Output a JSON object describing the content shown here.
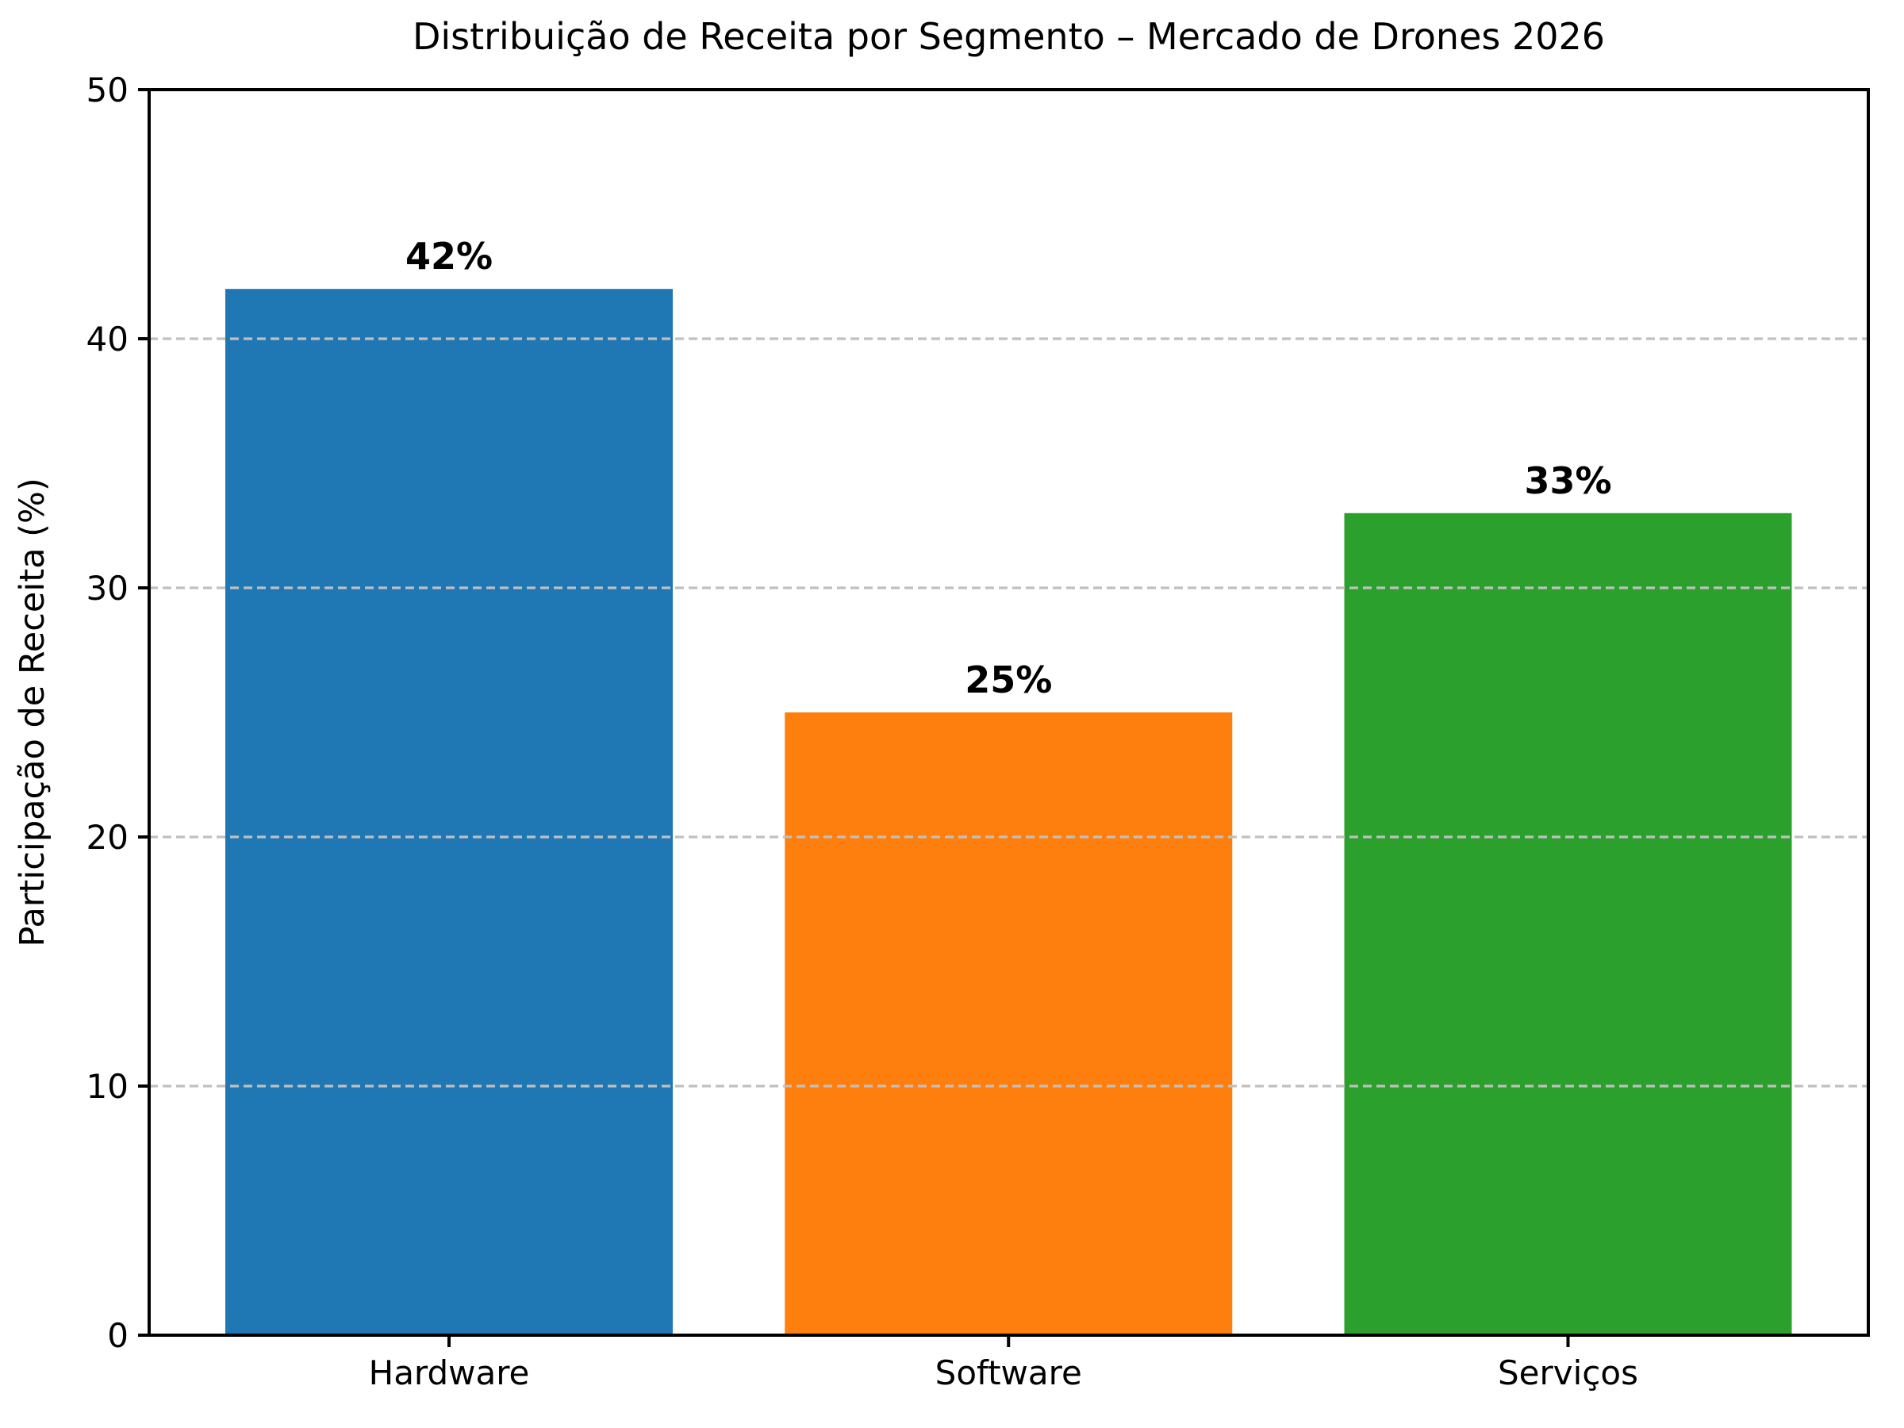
{
  "chart_data": {
    "type": "bar",
    "title": "Distribuição de Receita por Segmento – Mercado de Drones 2026",
    "ylabel": "Participação de Receita (%)",
    "xlabel": "",
    "categories": [
      "Hardware",
      "Software",
      "Serviços"
    ],
    "values": [
      42,
      25,
      33
    ],
    "value_labels": [
      "42%",
      "25%",
      "33%"
    ],
    "bar_colors": [
      "#1f77b4",
      "#ff7f0e",
      "#2ca02c"
    ],
    "ylim": [
      0,
      50
    ],
    "yticks": [
      0,
      10,
      20,
      30,
      40,
      50
    ],
    "grid": {
      "axis": "y",
      "style": "dashed",
      "color": "#c0c0c0",
      "at": [
        10,
        20,
        30,
        40
      ],
      "drawn_above_bars": true
    },
    "legend": "none",
    "colors": {
      "background": "#ffffff",
      "text": "#000000",
      "spine": "#000000"
    }
  }
}
